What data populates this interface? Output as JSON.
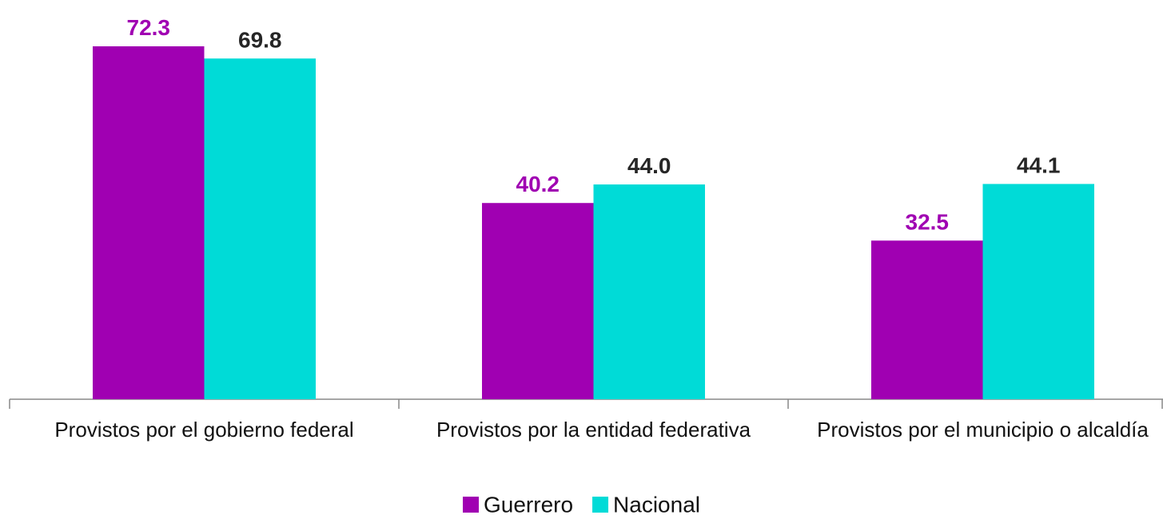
{
  "chart_data": {
    "type": "bar",
    "categories": [
      "Provistos por el gobierno federal",
      "Provistos por la entidad federativa",
      "Provistos por el municipio o alcaldía"
    ],
    "series": [
      {
        "name": "Guerrero",
        "color": "#a000b2",
        "label_color": "#a000b2",
        "values": [
          72.3,
          40.2,
          32.5
        ],
        "value_labels": [
          "72.3",
          "40.2",
          "32.5"
        ]
      },
      {
        "name": "Nacional",
        "color": "#00dbd7",
        "label_color": "#262626",
        "values": [
          69.8,
          44.0,
          44.1
        ],
        "value_labels": [
          "69.8",
          "44.0",
          "44.1"
        ]
      }
    ],
    "legend": "bottom"
  }
}
